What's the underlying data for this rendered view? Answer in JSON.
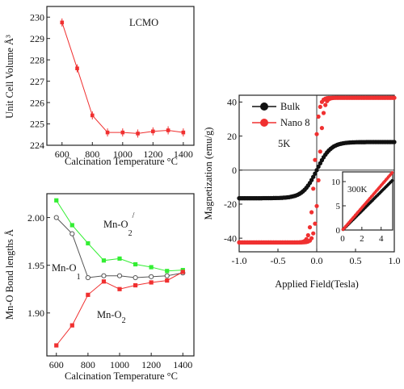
{
  "colors": {
    "red": "#f03030",
    "green": "#33ee33",
    "black": "#111111",
    "grey": "#555555"
  },
  "chart_data": [
    {
      "type": "line",
      "panel": "unit-cell-volume",
      "title": "",
      "xlabel": "Calcination Temperature °C",
      "ylabel": "Unit Cell Volume Å³",
      "annotation": "LCMO",
      "xlim": [
        500,
        1470
      ],
      "ylim": [
        224,
        230.5
      ],
      "xticks": [
        600,
        800,
        1000,
        1200,
        1400
      ],
      "yticks": [
        224,
        225,
        226,
        227,
        228,
        229,
        230
      ],
      "series": [
        {
          "color": "#f03030",
          "marker": "square-filled",
          "x": [
            600,
            700,
            800,
            900,
            1000,
            1100,
            1200,
            1300,
            1400
          ],
          "y": [
            229.75,
            227.6,
            225.4,
            224.6,
            224.6,
            224.55,
            224.65,
            224.7,
            224.6
          ]
        }
      ]
    },
    {
      "type": "line",
      "panel": "bond-lengths",
      "title": "",
      "xlabel": "Calcination Temperature °C",
      "ylabel": "Mn-O Bond lengths Å",
      "xlim": [
        540,
        1470
      ],
      "ylim": [
        1.855,
        2.025
      ],
      "xticks": [
        600,
        800,
        1000,
        1200,
        1400
      ],
      "yticks": [
        1.9,
        1.95,
        2.0
      ],
      "ytick_labels": [
        "1.90",
        "1.95",
        "2.00"
      ],
      "annotations": [
        {
          "text": "Mn-O",
          "sub": "2",
          "sup": "/"
        },
        {
          "text": "Mn-O",
          "sub": "1",
          "sup": ""
        },
        {
          "text": "Mn-O",
          "sub": "2",
          "sup": ""
        }
      ],
      "series": [
        {
          "label": "Mn-O2'",
          "color": "#33ee33",
          "marker": "square-filled",
          "x": [
            600,
            700,
            800,
            900,
            1000,
            1100,
            1200,
            1300,
            1400
          ],
          "y": [
            2.018,
            1.992,
            1.973,
            1.955,
            1.957,
            1.951,
            1.948,
            1.944,
            1.945
          ]
        },
        {
          "label": "Mn-O1",
          "color": "#555555",
          "marker": "circle-open",
          "x": [
            600,
            700,
            800,
            900,
            1000,
            1100,
            1200,
            1300,
            1400
          ],
          "y": [
            2.0,
            1.983,
            1.937,
            1.939,
            1.939,
            1.937,
            1.938,
            1.939,
            1.942
          ]
        },
        {
          "label": "Mn-O2",
          "color": "#f03030",
          "marker": "square-filled",
          "x": [
            600,
            700,
            800,
            900,
            1000,
            1100,
            1200,
            1300,
            1400
          ],
          "y": [
            1.866,
            1.887,
            1.919,
            1.933,
            1.925,
            1.929,
            1.932,
            1.934,
            1.943
          ]
        }
      ]
    },
    {
      "type": "scatter",
      "panel": "magnetization",
      "title": "",
      "xlabel": "Applied Field(Tesla)",
      "ylabel": "Magnetization (emu/g)",
      "annotation": "5K",
      "xlim": [
        -1.0,
        1.0
      ],
      "ylim": [
        -48,
        44
      ],
      "xticks": [
        -1.0,
        -0.5,
        0.0,
        0.5,
        1.0
      ],
      "xtick_labels": [
        "-1.0",
        "-0.5",
        "0.0",
        "0.5",
        "1.0"
      ],
      "yticks": [
        -40,
        -20,
        0,
        20,
        40
      ],
      "legend_position": "top-left",
      "series": [
        {
          "name": "Bulk",
          "color": "#111111",
          "Ms": 16.5,
          "Hc": 0.0,
          "width": 0.18
        },
        {
          "name": "Nano 8",
          "color": "#f03030",
          "Ms": 42.5,
          "Hc": 0.03,
          "width": 0.055
        }
      ],
      "inset": {
        "annotation": "300K",
        "xlim": [
          0,
          5.2
        ],
        "ylim": [
          0,
          12
        ],
        "xticks": [
          0,
          2,
          4
        ],
        "yticks": [
          0,
          5,
          10
        ],
        "series": [
          {
            "color": "#111111",
            "slope": 1.98
          },
          {
            "color": "#f03030",
            "slope": 2.3
          }
        ]
      }
    }
  ]
}
